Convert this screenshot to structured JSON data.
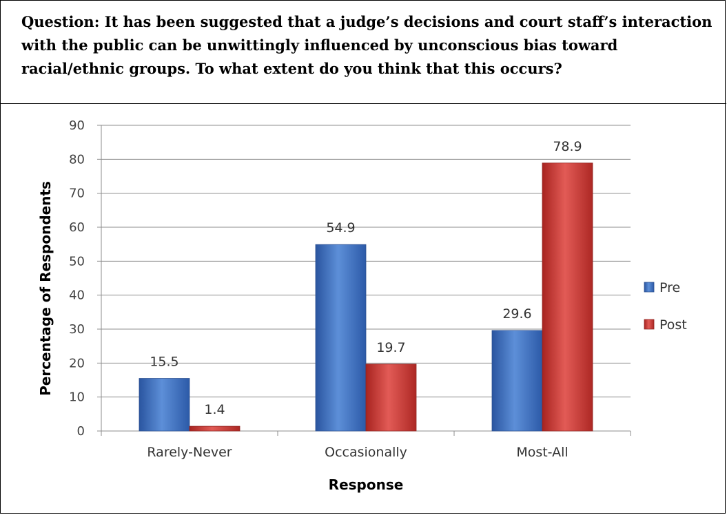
{
  "question": {
    "text": "Question: It has been suggested that a judge’s decisions and court staff’s interaction with the public can be unwittingly influenced by unconscious bias toward racial/ethnic groups.  To what extent do you think that this occurs?"
  },
  "chart_data": {
    "type": "bar",
    "categories": [
      "Rarely-Never",
      "Occasionally",
      "Most-All"
    ],
    "series": [
      {
        "name": "Pre",
        "values": [
          15.5,
          54.9,
          29.6
        ],
        "color": "#3f74c6",
        "labels": [
          "15.5",
          "54.9",
          "29.6"
        ]
      },
      {
        "name": "Post",
        "values": [
          1.4,
          19.7,
          78.9
        ],
        "color": "#d23f3b",
        "labels": [
          "1.4",
          "19.7",
          "78.9"
        ]
      }
    ],
    "xlabel": "Response",
    "ylabel": "Percentage of Respondents",
    "ylim": [
      0,
      90
    ],
    "yticks": [
      0,
      10,
      20,
      30,
      40,
      50,
      60,
      70,
      80,
      90
    ],
    "grid": true,
    "legend_position": "right"
  }
}
